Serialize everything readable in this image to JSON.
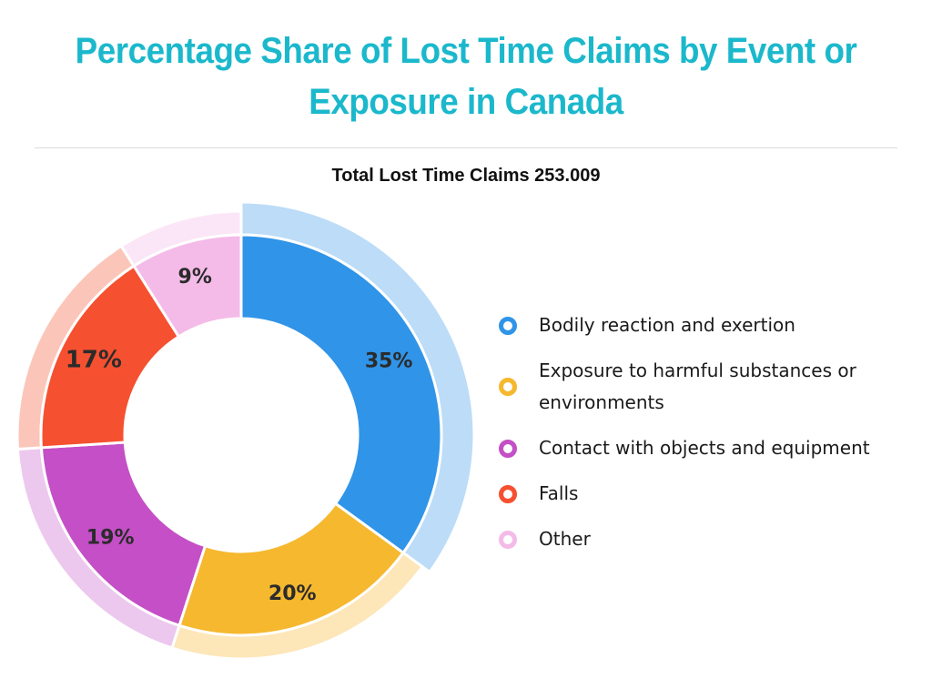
{
  "title": "Percentage Share of Lost Time Claims by Event or Exposure in Canada",
  "subtitle": "Total Lost Time Claims 253.009",
  "legend": [
    {
      "label": "Bodily reaction and exertion",
      "color": "#3094e8"
    },
    {
      "label": "Exposure to harmful substances or environments",
      "color": "#f5b82e"
    },
    {
      "label": "Contact with objects and equipment",
      "color": "#c44fc6"
    },
    {
      "label": "Falls",
      "color": "#f55030"
    },
    {
      "label": "Other",
      "color": "#f4bbe8"
    }
  ],
  "labels": {
    "s0": "35%",
    "s1": "20%",
    "s2": "19%",
    "s3": "17%",
    "s4": "9%"
  },
  "chart_data": {
    "type": "pie",
    "subtype": "donut",
    "title": "Percentage Share of Lost Time Claims by Event or Exposure in Canada",
    "subtitle": "Total Lost Time Claims 253.009",
    "categories": [
      "Bodily reaction and exertion",
      "Exposure to harmful substances or environments",
      "Contact with objects and equipment",
      "Falls",
      "Other"
    ],
    "values": [
      35,
      20,
      19,
      17,
      9
    ],
    "unit": "%",
    "colors": [
      "#3094e8",
      "#f5b82e",
      "#c44fc6",
      "#f55030",
      "#f4bbe8"
    ],
    "legend_position": "right"
  }
}
